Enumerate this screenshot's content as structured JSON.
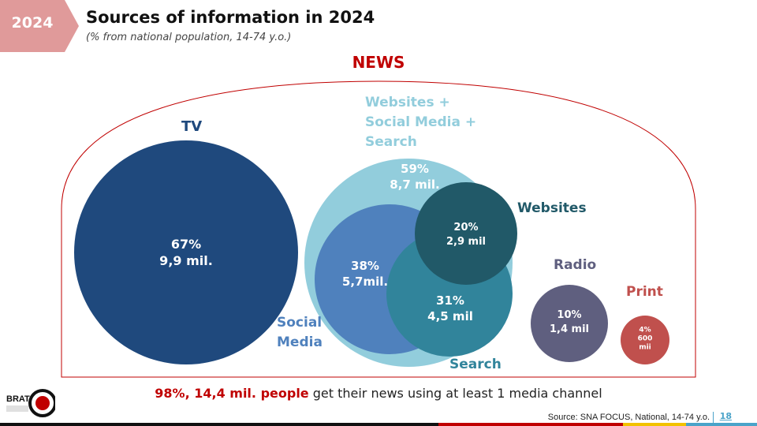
{
  "header": {
    "year": "2024",
    "title": "Sources of information in 2024",
    "subtitle": "(% from national population, 14-74 y.o.)",
    "accent_color": "#e09a9a"
  },
  "diagram": {
    "group_label": "NEWS",
    "group_color": "#c00000",
    "circles": [
      {
        "id": "tv",
        "label": "TV",
        "percent": "67%",
        "value": "9,9 mil.",
        "color": "#1f497d"
      },
      {
        "id": "online",
        "label": [
          "Websites +",
          "Social Media +",
          "Search"
        ],
        "percent": "59%",
        "value": "8,7 mil.",
        "color": "#92cddc"
      },
      {
        "id": "social",
        "label": [
          "Social",
          "Media"
        ],
        "percent": "38%",
        "value": "5,7mil.",
        "color": "#4f81bd"
      },
      {
        "id": "search",
        "label": "Search",
        "percent": "31%",
        "value": "4,5 mil",
        "color": "#31849b"
      },
      {
        "id": "websites",
        "label": "Websites",
        "percent": "20%",
        "value": "2,9 mil",
        "color": "#215968"
      },
      {
        "id": "radio",
        "label": "Radio",
        "percent": "10%",
        "value": "1,4 mil",
        "color": "#5f5f7f"
      },
      {
        "id": "print",
        "label": "Print",
        "percent": "4%",
        "value": "600",
        "value2": "mii",
        "color": "#c0504d"
      }
    ]
  },
  "summary": {
    "highlight": "98%, 14,4 mil. people",
    "rest": " get their news using at least 1 media channel"
  },
  "footer": {
    "source": "Source: SNA FOCUS, National, 14-74 y.o.",
    "page_number": "18",
    "logo_text": "BRAT"
  },
  "colors": {
    "bar": [
      "#111111",
      "#c00000",
      "#f2c200",
      "#4aa3c9"
    ]
  }
}
